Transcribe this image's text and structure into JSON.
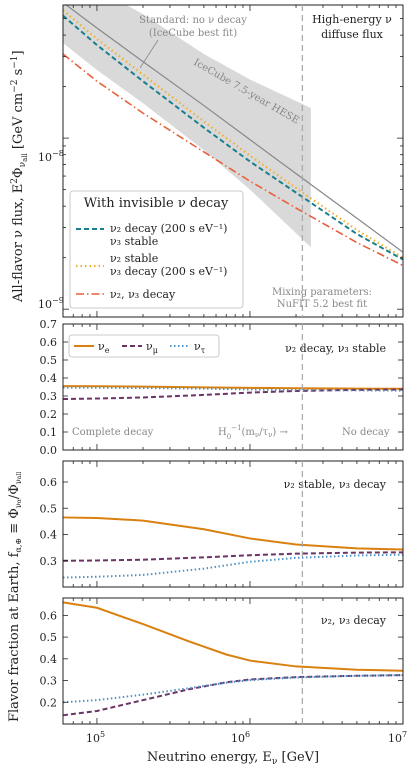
{
  "figure": {
    "x_axis_label": "Neutrino energy, E",
    "x_axis_label_sub": "ν",
    "x_axis_label_unit": " [GeV]",
    "x_ticks": [
      "10",
      "10",
      "10"
    ],
    "x_tick_exps": [
      "5",
      "6",
      "7"
    ],
    "reference_line_energy_gev": 2200000
  },
  "top_panel": {
    "ylabel_main": "All-flavor ν flux, E",
    "ylabel_unit": " [GeV cm",
    "ylabel_unit2": " s",
    "ylabel_unit3": "]",
    "annotation_high_energy_line1": "High-energy ν",
    "annotation_high_energy_line2": "diffuse flux",
    "annotation_standard_line1": "Standard: no ν decay",
    "annotation_standard_line2": "(IceCube best fit)",
    "annotation_band": "IceCube 7.5-year HESE",
    "annotation_mixing_line1": "Mixing parameters:",
    "annotation_mixing_line2": "NuFIT 5.2 best fit",
    "legend_title": "With invisible ν decay",
    "legend_items": [
      {
        "line1": "ν₂ decay (200 s eV⁻¹)",
        "line2": "ν₃ stable",
        "color": "#1a7f8e"
      },
      {
        "line1": "ν₂ stable",
        "line2": "ν₃ decay (200 s eV⁻¹)",
        "color": "#f0b030"
      },
      {
        "line1": "ν₂, ν₃ decay",
        "line2": "",
        "color": "#e8603c"
      }
    ],
    "y_tick_1e-8": "10",
    "y_tick_1e-8_exp": "−8",
    "y_tick_1e-9": "10",
    "y_tick_1e-9_exp": "−9"
  },
  "fraction_panels": {
    "ylabel": "Flavor fraction at Earth, f",
    "ylabel_eq": "≡ Φ",
    "panel1_title": "ν₂ decay, ν₃ stable",
    "panel2_title": "ν₂ stable, ν₃ decay",
    "panel3_title": "ν₂, ν₃ decay",
    "legend_labels": [
      "ν",
      "ν",
      "ν"
    ],
    "legend_subs": [
      "e",
      "μ",
      "τ"
    ],
    "annotation_complete_decay": "Complete decay",
    "annotation_threshold": "H",
    "annotation_threshold_tail": "(m",
    "annotation_no_decay": "No decay",
    "panel1_yticks": [
      "0.0",
      "0.1",
      "0.2",
      "0.3",
      "0.4",
      "0.5",
      "0.6",
      "0.7"
    ],
    "panel2_yticks": [
      "0.3",
      "0.4",
      "0.5",
      "0.6"
    ],
    "panel3_yticks": [
      "0.2",
      "0.3",
      "0.4",
      "0.5",
      "0.6"
    ]
  },
  "colors": {
    "nu_e": "#d9800f",
    "nu_mu": "#6b3366",
    "nu_tau": "#4f93c4",
    "band": "#d9d9d9",
    "standard": "#888888",
    "ref_line": "#aaaaaa"
  },
  "chart_data": [
    {
      "type": "line",
      "title": "High-energy ν diffuse flux",
      "xlabel": "Neutrino energy, E_ν [GeV]",
      "ylabel": "All-flavor ν flux, E_ν² Φ_ν_all [GeV cm⁻² s⁻¹]",
      "xscale": "log",
      "yscale": "log",
      "xlim": [
        60000,
        10000000
      ],
      "ylim": [
        9e-10,
        6e-08
      ],
      "x": [
        60000,
        100000,
        200000,
        500000,
        1000000,
        2000000,
        5000000,
        10000000
      ],
      "series": [
        {
          "name": "Standard: no ν decay (IceCube best fit)",
          "values": [
            6.2e-08,
            4.4e-08,
            2.8e-08,
            1.55e-08,
            9.8e-09,
            6.2e-09,
            3.4e-09,
            2.15e-09
          ]
        },
        {
          "name": "ν₂ decay (200 s eV⁻¹), ν₃ stable",
          "values": [
            5.2e-08,
            3.5e-08,
            2.15e-08,
            1.15e-08,
            7.3e-09,
            4.8e-09,
            2.75e-09,
            1.95e-09
          ]
        },
        {
          "name": "ν₂ stable, ν₃ decay (200 s eV⁻¹)",
          "values": [
            5.6e-08,
            3.8e-08,
            2.35e-08,
            1.25e-08,
            7.9e-09,
            5.1e-09,
            2.9e-09,
            2e-09
          ]
        },
        {
          "name": "ν₂, ν₃ decay",
          "values": [
            3.1e-08,
            2.15e-08,
            1.4e-08,
            8.3e-09,
            5.6e-09,
            3.9e-09,
            2.45e-09,
            1.8e-09
          ]
        }
      ],
      "band": {
        "name": "IceCube 7.5-year HESE",
        "x": [
          60000,
          100000,
          200000,
          500000,
          1000000,
          2500000
        ],
        "upper": [
          1.1e-07,
          7.5e-08,
          5.3e-08,
          3.1e-08,
          2.2e-08,
          1.5e-08
        ],
        "lower": [
          3.6e-08,
          2.5e-08,
          1.6e-08,
          8.5e-09,
          5e-09,
          2.3e-09
        ]
      }
    },
    {
      "type": "line",
      "title": "ν₂ decay, ν₃ stable",
      "xscale": "log",
      "xlim": [
        60000,
        10000000
      ],
      "ylim": [
        0,
        0.7
      ],
      "x": [
        60000,
        100000,
        200000,
        500000,
        1000000,
        2000000,
        5000000,
        10000000
      ],
      "series": [
        {
          "name": "νe",
          "values": [
            0.355,
            0.354,
            0.352,
            0.348,
            0.345,
            0.343,
            0.341,
            0.34
          ]
        },
        {
          "name": "νμ",
          "values": [
            0.283,
            0.286,
            0.292,
            0.306,
            0.319,
            0.328,
            0.334,
            0.336
          ]
        },
        {
          "name": "ντ",
          "values": [
            0.347,
            0.346,
            0.344,
            0.341,
            0.336,
            0.333,
            0.331,
            0.33
          ]
        }
      ]
    },
    {
      "type": "line",
      "title": "ν₂ stable, ν₃ decay",
      "xscale": "log",
      "xlim": [
        60000,
        10000000
      ],
      "ylim": [
        0.2,
        0.68
      ],
      "x": [
        60000,
        100000,
        200000,
        500000,
        1000000,
        2000000,
        5000000,
        10000000
      ],
      "series": [
        {
          "name": "νe",
          "values": [
            0.465,
            0.463,
            0.453,
            0.42,
            0.385,
            0.362,
            0.347,
            0.343
          ]
        },
        {
          "name": "νμ",
          "values": [
            0.3,
            0.301,
            0.304,
            0.313,
            0.321,
            0.327,
            0.331,
            0.332
          ]
        },
        {
          "name": "ντ",
          "values": [
            0.236,
            0.239,
            0.246,
            0.27,
            0.296,
            0.311,
            0.32,
            0.323
          ]
        }
      ]
    },
    {
      "type": "line",
      "title": "ν₂, ν₃ decay",
      "xscale": "log",
      "xlim": [
        60000,
        10000000
      ],
      "ylim": [
        0.1,
        0.68
      ],
      "x": [
        60000,
        100000,
        200000,
        400000,
        700000,
        1000000,
        2000000,
        5000000,
        10000000
      ],
      "series": [
        {
          "name": "νe",
          "values": [
            0.66,
            0.635,
            0.56,
            0.48,
            0.42,
            0.392,
            0.365,
            0.35,
            0.345
          ]
        },
        {
          "name": "νμ",
          "values": [
            0.14,
            0.16,
            0.21,
            0.26,
            0.292,
            0.305,
            0.316,
            0.322,
            0.325
          ]
        },
        {
          "name": "ντ",
          "values": [
            0.2,
            0.21,
            0.235,
            0.265,
            0.29,
            0.302,
            0.314,
            0.322,
            0.325
          ]
        }
      ]
    }
  ]
}
